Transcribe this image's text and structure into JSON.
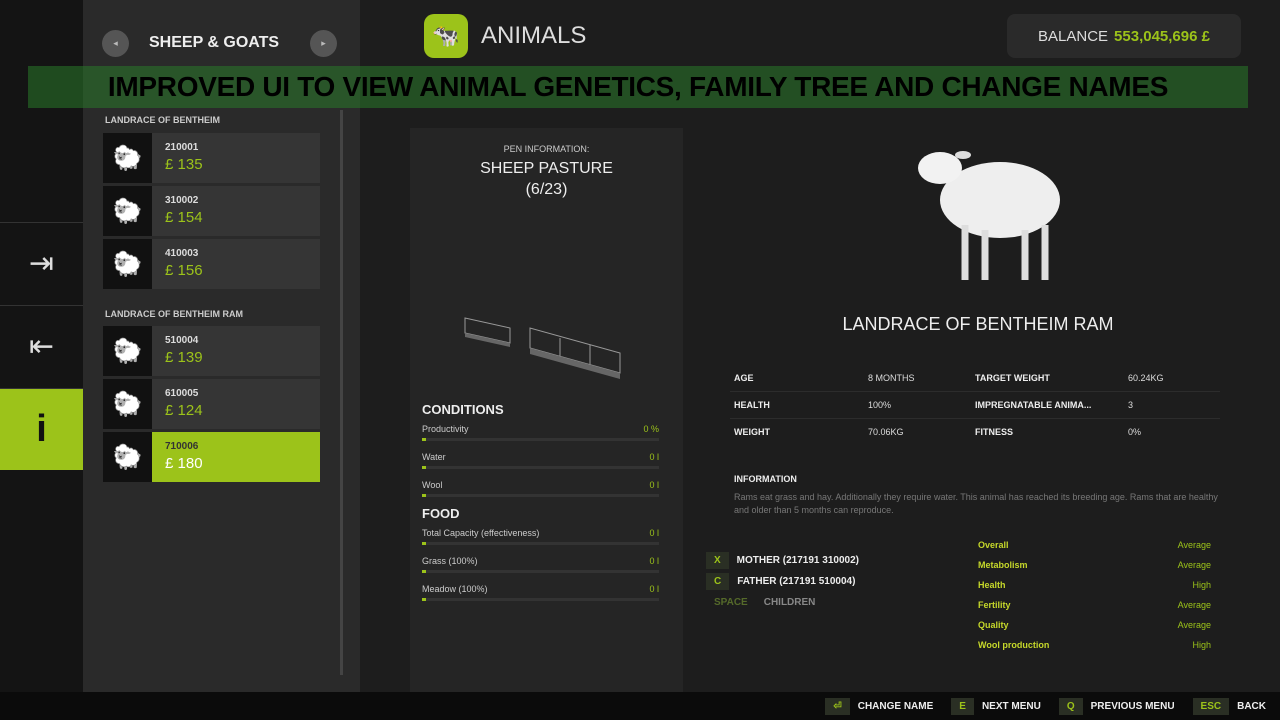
{
  "overlay_banner": "IMPROVED UI TO VIEW ANIMAL GENETICS, FAMILY TREE AND CHANGE NAMES",
  "sidebar": {
    "title": "SHEEP & GOATS",
    "prev": "◂",
    "next": "▸",
    "groups": [
      {
        "label": "LANDRACE OF BENTHEIM",
        "items": [
          {
            "id": "210001",
            "price": "£ 135"
          },
          {
            "id": "310002",
            "price": "£ 154"
          },
          {
            "id": "410003",
            "price": "£ 156"
          }
        ]
      },
      {
        "label": "LANDRACE OF BENTHEIM RAM",
        "items": [
          {
            "id": "510004",
            "price": "£ 139"
          },
          {
            "id": "610005",
            "price": "£ 124"
          },
          {
            "id": "710006",
            "price": "£ 180",
            "selected": true
          }
        ]
      }
    ]
  },
  "header": {
    "title": "ANIMALS",
    "balance_label": "BALANCE",
    "balance_value": "553,045,696 £"
  },
  "pen": {
    "label": "PEN INFORMATION:",
    "name": "SHEEP PASTURE",
    "count": "(6/23)",
    "conditions_title": "CONDITIONS",
    "conditions": [
      {
        "label": "Productivity",
        "value": "0 %"
      },
      {
        "label": "Water",
        "value": "0 l"
      },
      {
        "label": "Wool",
        "value": "0 l"
      }
    ],
    "food_title": "FOOD",
    "food": [
      {
        "label": "Total Capacity (effectiveness)",
        "value": "0 l"
      },
      {
        "label": "Grass (100%)",
        "value": "0 l"
      },
      {
        "label": "Meadow (100%)",
        "value": "0 l"
      }
    ]
  },
  "animal": {
    "name": "LANDRACE OF BENTHEIM RAM",
    "stats": [
      [
        "AGE",
        "8 MONTHS",
        "TARGET WEIGHT",
        "60.24KG"
      ],
      [
        "HEALTH",
        "100%",
        "IMPREGNATABLE ANIMA...",
        "3"
      ],
      [
        "WEIGHT",
        "70.06KG",
        "FITNESS",
        "0%"
      ]
    ],
    "info_title": "INFORMATION",
    "info_text": "Rams eat grass and hay. Additionally they require water. This animal has reached its breeding age. Rams that are healthy and older than 5 months can reproduce.",
    "family": [
      {
        "key": "X",
        "label": "MOTHER (217191 310002)"
      },
      {
        "key": "C",
        "label": "FATHER (217191 510004)"
      },
      {
        "key": "SPACE",
        "label": "CHILDREN"
      }
    ],
    "genetics": [
      [
        "Overall",
        "Average"
      ],
      [
        "Metabolism",
        "Average"
      ],
      [
        "Health",
        "High"
      ],
      [
        "Fertility",
        "Average"
      ],
      [
        "Quality",
        "Average"
      ],
      [
        "Wool production",
        "High"
      ]
    ]
  },
  "footer": [
    {
      "key": "⏎",
      "label": "CHANGE NAME"
    },
    {
      "key": "E",
      "label": "NEXT MENU"
    },
    {
      "key": "Q",
      "label": "PREVIOUS MENU"
    },
    {
      "key": "ESC",
      "label": "BACK"
    }
  ],
  "colors": {
    "accent": "#9cc31a",
    "genetics": "#c6d82a"
  }
}
